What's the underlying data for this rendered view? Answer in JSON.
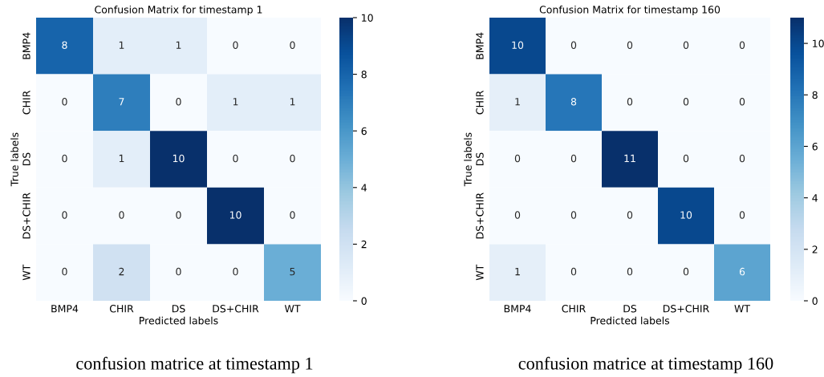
{
  "chart_data": [
    {
      "type": "heatmap",
      "title": "Confusion Matrix for timestamp 1",
      "xlabel": "Predicted labels",
      "ylabel": "True labels",
      "categories": [
        "BMP4",
        "CHIR",
        "DS",
        "DS+CHIR",
        "WT"
      ],
      "y_categories": [
        "BMP4",
        "CHIR",
        "DS",
        "DS+CHIR",
        "WT"
      ],
      "cells": [
        [
          8,
          1,
          1,
          0,
          0
        ],
        [
          0,
          7,
          0,
          1,
          1
        ],
        [
          0,
          1,
          10,
          0,
          0
        ],
        [
          0,
          0,
          0,
          10,
          0
        ],
        [
          0,
          2,
          0,
          0,
          5
        ]
      ],
      "clim": [
        0,
        10
      ],
      "cticks": [
        0,
        2,
        4,
        6,
        8,
        10
      ],
      "data_labels": true,
      "annotations": [
        "confusion matrice at timestamp 1"
      ]
    },
    {
      "type": "heatmap",
      "title": "Confusion Matrix for timestamp 160",
      "xlabel": "Predicted labels",
      "ylabel": "True labels",
      "categories": [
        "BMP4",
        "CHIR",
        "DS",
        "DS+CHIR",
        "WT"
      ],
      "y_categories": [
        "BMP4",
        "CHIR",
        "DS",
        "DS+CHIR",
        "WT"
      ],
      "cells": [
        [
          10,
          0,
          0,
          0,
          0
        ],
        [
          1,
          8,
          0,
          0,
          0
        ],
        [
          0,
          0,
          11,
          0,
          0
        ],
        [
          0,
          0,
          0,
          10,
          0
        ],
        [
          1,
          0,
          0,
          0,
          6
        ]
      ],
      "clim": [
        0,
        11
      ],
      "cticks": [
        0,
        2,
        4,
        6,
        8,
        10
      ],
      "data_labels": true,
      "annotations": [
        "confusion matrice at timestamp 160"
      ]
    }
  ]
}
